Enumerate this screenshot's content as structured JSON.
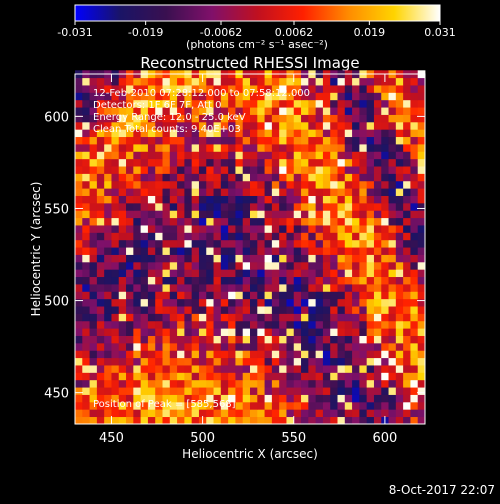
{
  "chart_data": {
    "type": "heatmap",
    "title": "Reconstructed RHESSI Image",
    "xlabel": "Heliocentric X (arcsec)",
    "ylabel": "Heliocentric Y (arcsec)",
    "xlim": [
      430,
      622
    ],
    "ylim": [
      433,
      623
    ],
    "xticks": [
      450,
      500,
      550,
      600
    ],
    "yticks": [
      450,
      500,
      550,
      600
    ],
    "info_lines": [
      "12-Feb-2010 07:28:12.000 to 07:58:12.000",
      "Detectors: 1F 6F 7F, Att 0",
      "Energy Range: 12.0 - 25.0 keV",
      "Clean    Total counts: 9.40E+03"
    ],
    "peak_text": "Position of Peak = [585,568]",
    "peak": [
      585,
      568
    ],
    "colorbar": {
      "min": -0.031,
      "max": 0.031,
      "ticks": [
        "-0.031",
        "-0.019",
        "-0.0062",
        "0.0062",
        "0.019",
        "0.031"
      ],
      "unit_label": "(photons cm⁻² s⁻¹ asec⁻²)",
      "colormap": [
        "#0000ff",
        "#1a1466",
        "#3a1050",
        "#80106a",
        "#c01020",
        "#ff2000",
        "#ff8c00",
        "#ffd400",
        "#ffffff"
      ]
    },
    "grid": false,
    "pixel_size_arcsec": 4
  },
  "footer": {
    "timestamp": "8-Oct-2017 22:07"
  }
}
